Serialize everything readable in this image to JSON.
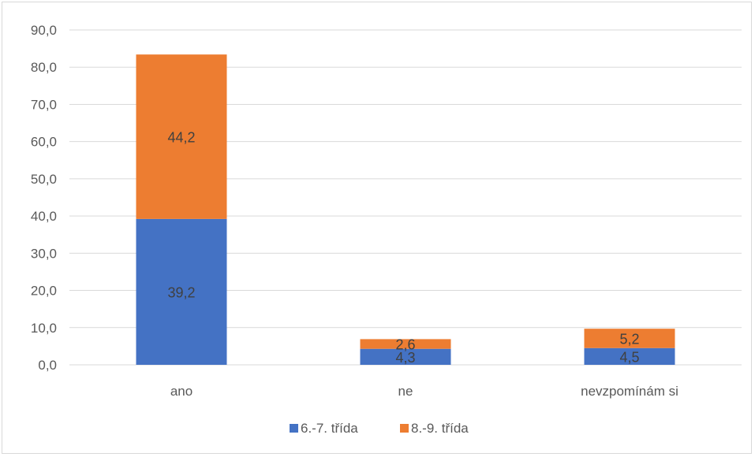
{
  "chart_data": {
    "type": "bar",
    "stacked": true,
    "categories": [
      "ano",
      "ne",
      "nevzpomínám si"
    ],
    "series": [
      {
        "name": "6.-7. třída",
        "values": [
          39.2,
          4.3,
          4.5
        ],
        "labels": [
          "39,2",
          "4,3",
          "4,5"
        ],
        "color": "#4472c4"
      },
      {
        "name": "8.-9. třída",
        "values": [
          44.2,
          2.6,
          5.2
        ],
        "labels": [
          "44,2",
          "2,6",
          "5,2"
        ],
        "color": "#ed7d31"
      }
    ],
    "ylim": [
      0,
      90
    ],
    "yticks": [
      0,
      10,
      20,
      30,
      40,
      50,
      60,
      70,
      80,
      90
    ],
    "ytick_labels": [
      "0,0",
      "10,0",
      "20,0",
      "30,0",
      "40,0",
      "50,0",
      "60,0",
      "70,0",
      "80,0",
      "90,0"
    ],
    "grid": true,
    "legend": "bottom",
    "title": "",
    "xlabel": "",
    "ylabel": ""
  }
}
